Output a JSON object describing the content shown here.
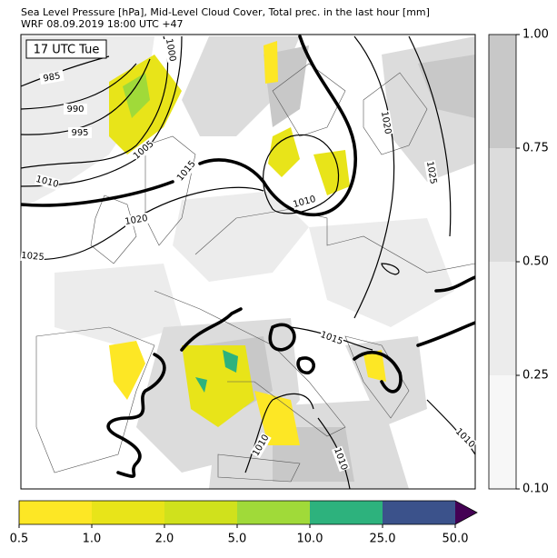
{
  "header": {
    "title": "Sea Level Pressure [hPa], Mid-Level Cloud Cover, Total prec. in the last hour [mm]",
    "subtitle": "WRF 08.09.2019 18:00 UTC +47"
  },
  "map": {
    "time_label": "17 UTC Tue",
    "contour_labels": [
      "985",
      "990",
      "995",
      "1000",
      "1005",
      "1010",
      "1015",
      "1020",
      "1025",
      "1010",
      "1020",
      "1025",
      "1015",
      "1010",
      "1010",
      "1010"
    ]
  },
  "cloud_colorbar": {
    "ticks": [
      "0.10",
      "0.25",
      "0.50",
      "0.75",
      "1.00"
    ]
  },
  "precip_colorbar": {
    "ticks": [
      "0.5",
      "1.0",
      "2.0",
      "5.0",
      "10.0",
      "25.0",
      "50.0"
    ]
  }
}
